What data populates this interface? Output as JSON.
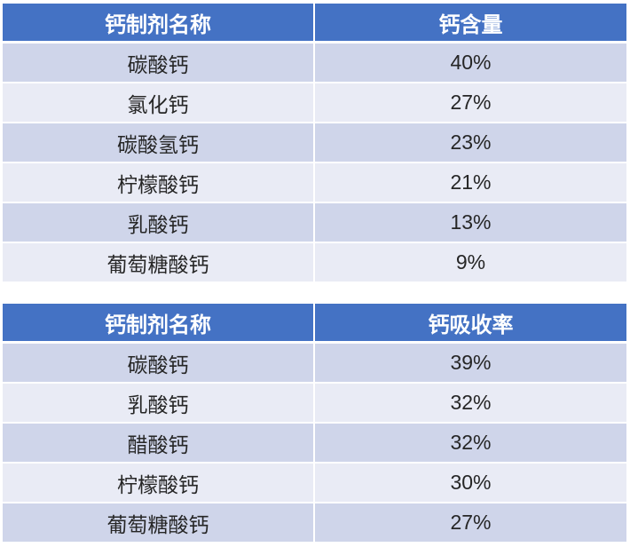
{
  "table_content": {
    "headers": [
      "钙制剂名称",
      "钙含量"
    ],
    "rows": [
      [
        "碳酸钙",
        "40%"
      ],
      [
        "氯化钙",
        "27%"
      ],
      [
        "碳酸氢钙",
        "23%"
      ],
      [
        "柠檬酸钙",
        "21%"
      ],
      [
        "乳酸钙",
        "13%"
      ],
      [
        "葡萄糖酸钙",
        "9%"
      ]
    ]
  },
  "table_absorption": {
    "headers": [
      "钙制剂名称",
      "钙吸收率"
    ],
    "rows": [
      [
        "碳酸钙",
        "39%"
      ],
      [
        "乳酸钙",
        "32%"
      ],
      [
        "醋酸钙",
        "32%"
      ],
      [
        "柠檬酸钙",
        "30%"
      ],
      [
        "葡萄糖酸钙",
        "27%"
      ]
    ]
  },
  "colors": {
    "header_bg": "#4472C4",
    "row_odd_bg": "#CFD5EA",
    "row_even_bg": "#E9EBF5",
    "header_text": "#FFFFFF",
    "body_text": "#262626"
  }
}
